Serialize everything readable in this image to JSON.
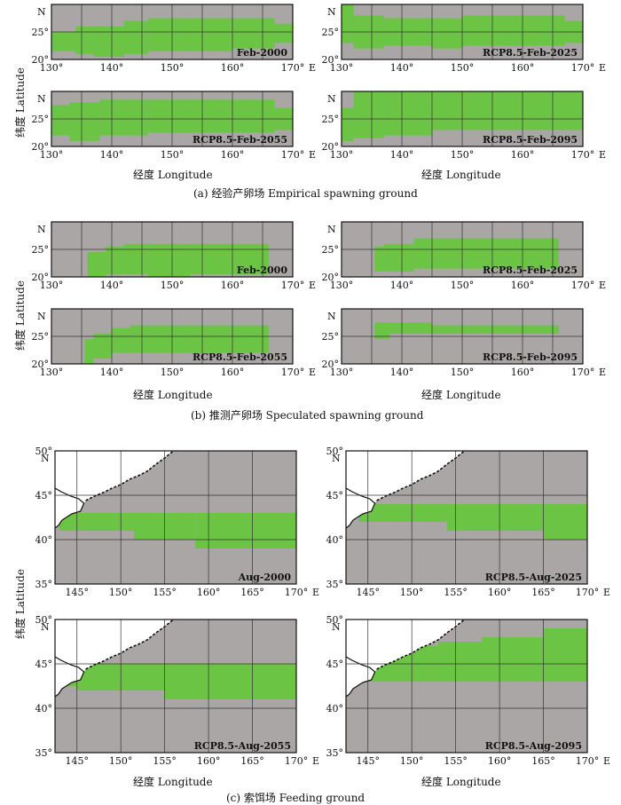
{
  "colors": {
    "sea": "#aaa6a6",
    "habitat": "#6cc445",
    "land": "#ffffff",
    "grid": "#333333"
  },
  "axis_labels": {
    "x": "经度 Longitude",
    "y": "纬度 Latitude",
    "east": "E",
    "north": "N"
  },
  "sections": [
    {
      "id": "a",
      "caption": "(a) 经验产卵场 Empirical spawning ground",
      "xticks": [
        "130°",
        "140°",
        "150°",
        "160°",
        "170°"
      ],
      "yticks": [
        "20°",
        "25°"
      ],
      "lon": [
        130,
        170
      ],
      "lat": [
        20,
        30
      ],
      "panels": [
        {
          "label": "Feb-2000",
          "habitat": [
            [
              130,
              21.5,
              134,
              25
            ],
            [
              134,
              21,
              137,
              26
            ],
            [
              137,
              20.5,
              142,
              26
            ],
            [
              142,
              21,
              146,
              27
            ],
            [
              146,
              21.5,
              160,
              27.5
            ],
            [
              160,
              22,
              167,
              27.5
            ],
            [
              167,
              23,
              170,
              26.5
            ]
          ]
        },
        {
          "label": "RCP8.5-Feb-2025",
          "habitat": [
            [
              130,
              23,
              132,
              30
            ],
            [
              132,
              22,
              137,
              28
            ],
            [
              137,
              22.5,
              145,
              27.5
            ],
            [
              145,
              22,
              150,
              27.5
            ],
            [
              150,
              22.5,
              158,
              28
            ],
            [
              158,
              22.5,
              167,
              28
            ],
            [
              167,
              23,
              170,
              27
            ]
          ]
        },
        {
          "label": "RCP8.5-Feb-2055",
          "habitat": [
            [
              130,
              22,
              133,
              27.5
            ],
            [
              133,
              21,
              138,
              28
            ],
            [
              138,
              22,
              146,
              28.5
            ],
            [
              146,
              22.5,
              160,
              28.5
            ],
            [
              160,
              22.5,
              167,
              28.5
            ],
            [
              167,
              23,
              170,
              27
            ]
          ]
        },
        {
          "label": "RCP8.5-Feb-2095",
          "habitat": [
            [
              130,
              21,
              132,
              27
            ],
            [
              132,
              21.5,
              137,
              30
            ],
            [
              137,
              22,
              145,
              30
            ],
            [
              145,
              23,
              170,
              30
            ]
          ]
        }
      ]
    },
    {
      "id": "b",
      "caption": "(b) 推测产卵场 Speculated spawning ground",
      "xticks": [
        "130°",
        "140°",
        "150°",
        "160°",
        "170°"
      ],
      "yticks": [
        "20°",
        "25°"
      ],
      "lon": [
        130,
        170
      ],
      "lat": [
        20,
        30
      ],
      "panels": [
        {
          "label": "Feb-2000",
          "habitat": [
            [
              136,
              20,
              139,
              24.5
            ],
            [
              139,
              20.5,
              142,
              25.5
            ],
            [
              142,
              20.5,
              146,
              26
            ],
            [
              146,
              20,
              153,
              26
            ],
            [
              153,
              20.5,
              166,
              26
            ]
          ]
        },
        {
          "label": "RCP8.5-Feb-2025",
          "habitat": [
            [
              135.5,
              21,
              137,
              25.5
            ],
            [
              137,
              21,
              142,
              26
            ],
            [
              142,
              21.5,
              155,
              27
            ],
            [
              155,
              21.5,
              166,
              27
            ]
          ]
        },
        {
          "label": "RCP8.5-Feb-2055",
          "habitat": [
            [
              135.5,
              20,
              137,
              24.5
            ],
            [
              137,
              21,
              140,
              25.5
            ],
            [
              140,
              22,
              143,
              26.5
            ],
            [
              143,
              22,
              166,
              27
            ]
          ]
        },
        {
          "label": "RCP8.5-Feb-2095",
          "habitat": [
            [
              135.5,
              24.5,
              138,
              27.5
            ],
            [
              138,
              25.5,
              145,
              27.5
            ],
            [
              145,
              25.5,
              166,
              27
            ]
          ]
        }
      ]
    },
    {
      "id": "c",
      "caption": "(c) 索饵场 Feeding ground",
      "xticks": [
        "145°",
        "150°",
        "155°",
        "160°",
        "165°",
        "170°"
      ],
      "yticks": [
        "35°",
        "40°",
        "45°",
        "50°"
      ],
      "lon": [
        142.5,
        170
      ],
      "lat": [
        35,
        50
      ],
      "panels": [
        {
          "label": "Aug-2000",
          "habitat": [
            [
              142.5,
              41.5,
              143,
              42
            ],
            [
              143,
              41,
              151.5,
              43
            ],
            [
              151.5,
              40,
              158.5,
              43
            ],
            [
              158.5,
              39,
              170,
              43
            ]
          ]
        },
        {
          "label": "RCP8.5-Aug-2025",
          "habitat": [
            [
              144,
              42,
              145,
              43.5
            ],
            [
              145,
              42,
              154,
              44
            ],
            [
              154,
              41,
              165,
              44
            ],
            [
              165,
              40,
              170,
              44
            ]
          ]
        },
        {
          "label": "RCP8.5-Aug-2055",
          "habitat": [
            [
              144,
              42.5,
              145,
              44.5
            ],
            [
              145,
              42,
              155,
              45
            ],
            [
              155,
              41,
              170,
              45
            ]
          ]
        },
        {
          "label": "RCP8.5-Aug-2095",
          "habitat": [
            [
              144,
              43,
              146,
              44.5
            ],
            [
              146,
              43,
              149,
              46
            ],
            [
              149,
              43,
              153,
              47
            ],
            [
              153,
              43,
              158,
              47.5
            ],
            [
              158,
              43,
              165,
              48
            ],
            [
              165,
              43,
              170,
              49
            ]
          ]
        }
      ]
    }
  ]
}
